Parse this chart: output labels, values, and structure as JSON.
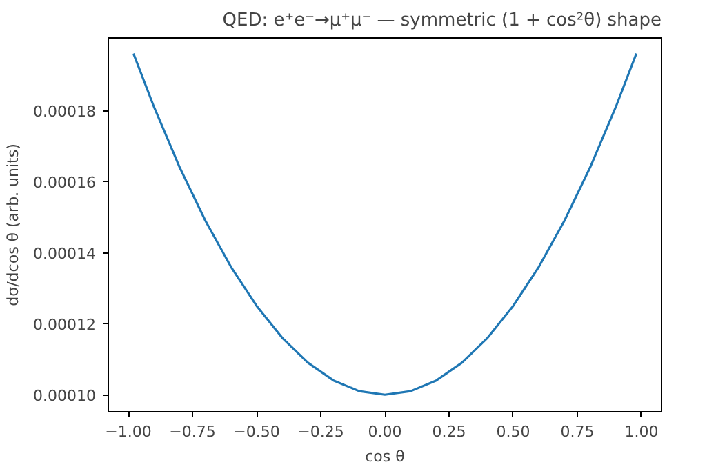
{
  "chart_data": {
    "type": "line",
    "title": "QED: e⁺e⁻→μ⁺μ⁻ — symmetric (1 + cos²θ) shape",
    "xlabel": "cos θ",
    "ylabel": "dσ/dcos θ (arb. units)",
    "x": [
      -0.98,
      -0.9,
      -0.8,
      -0.7,
      -0.6,
      -0.5,
      -0.4,
      -0.3,
      -0.2,
      -0.1,
      0,
      0.1,
      0.2,
      0.3,
      0.4,
      0.5,
      0.6,
      0.7,
      0.8,
      0.9,
      0.98
    ],
    "series": [
      {
        "color": "#1f77b4",
        "values": [
          0.000196,
          0.000181,
          0.000164,
          0.000149,
          0.000136,
          0.000125,
          0.000116,
          0.000109,
          0.000104,
          0.000101,
          0.0001,
          0.000101,
          0.000104,
          0.000109,
          0.000116,
          0.000125,
          0.000136,
          0.000149,
          0.000164,
          0.000181,
          0.000196
        ]
      }
    ],
    "xlim": [
      -1.078,
      1.078
    ],
    "ylim": [
      9.52e-05,
      0.0002004
    ],
    "xticks": [
      {
        "value": -1,
        "label": "−1.00"
      },
      {
        "value": -0.75,
        "label": "−0.75"
      },
      {
        "value": -0.5,
        "label": "−0.50"
      },
      {
        "value": -0.25,
        "label": "−0.25"
      },
      {
        "value": 0,
        "label": "0.00"
      },
      {
        "value": 0.25,
        "label": "0.25"
      },
      {
        "value": 0.5,
        "label": "0.50"
      },
      {
        "value": 0.75,
        "label": "0.75"
      },
      {
        "value": 1,
        "label": "1.00"
      }
    ],
    "yticks": [
      {
        "value": 0.0001,
        "label": "0.00010"
      },
      {
        "value": 0.00012,
        "label": "0.00012"
      },
      {
        "value": 0.00014,
        "label": "0.00014"
      },
      {
        "value": 0.00016,
        "label": "0.00016"
      },
      {
        "value": 0.00018,
        "label": "0.00018"
      }
    ],
    "grid": false
  }
}
